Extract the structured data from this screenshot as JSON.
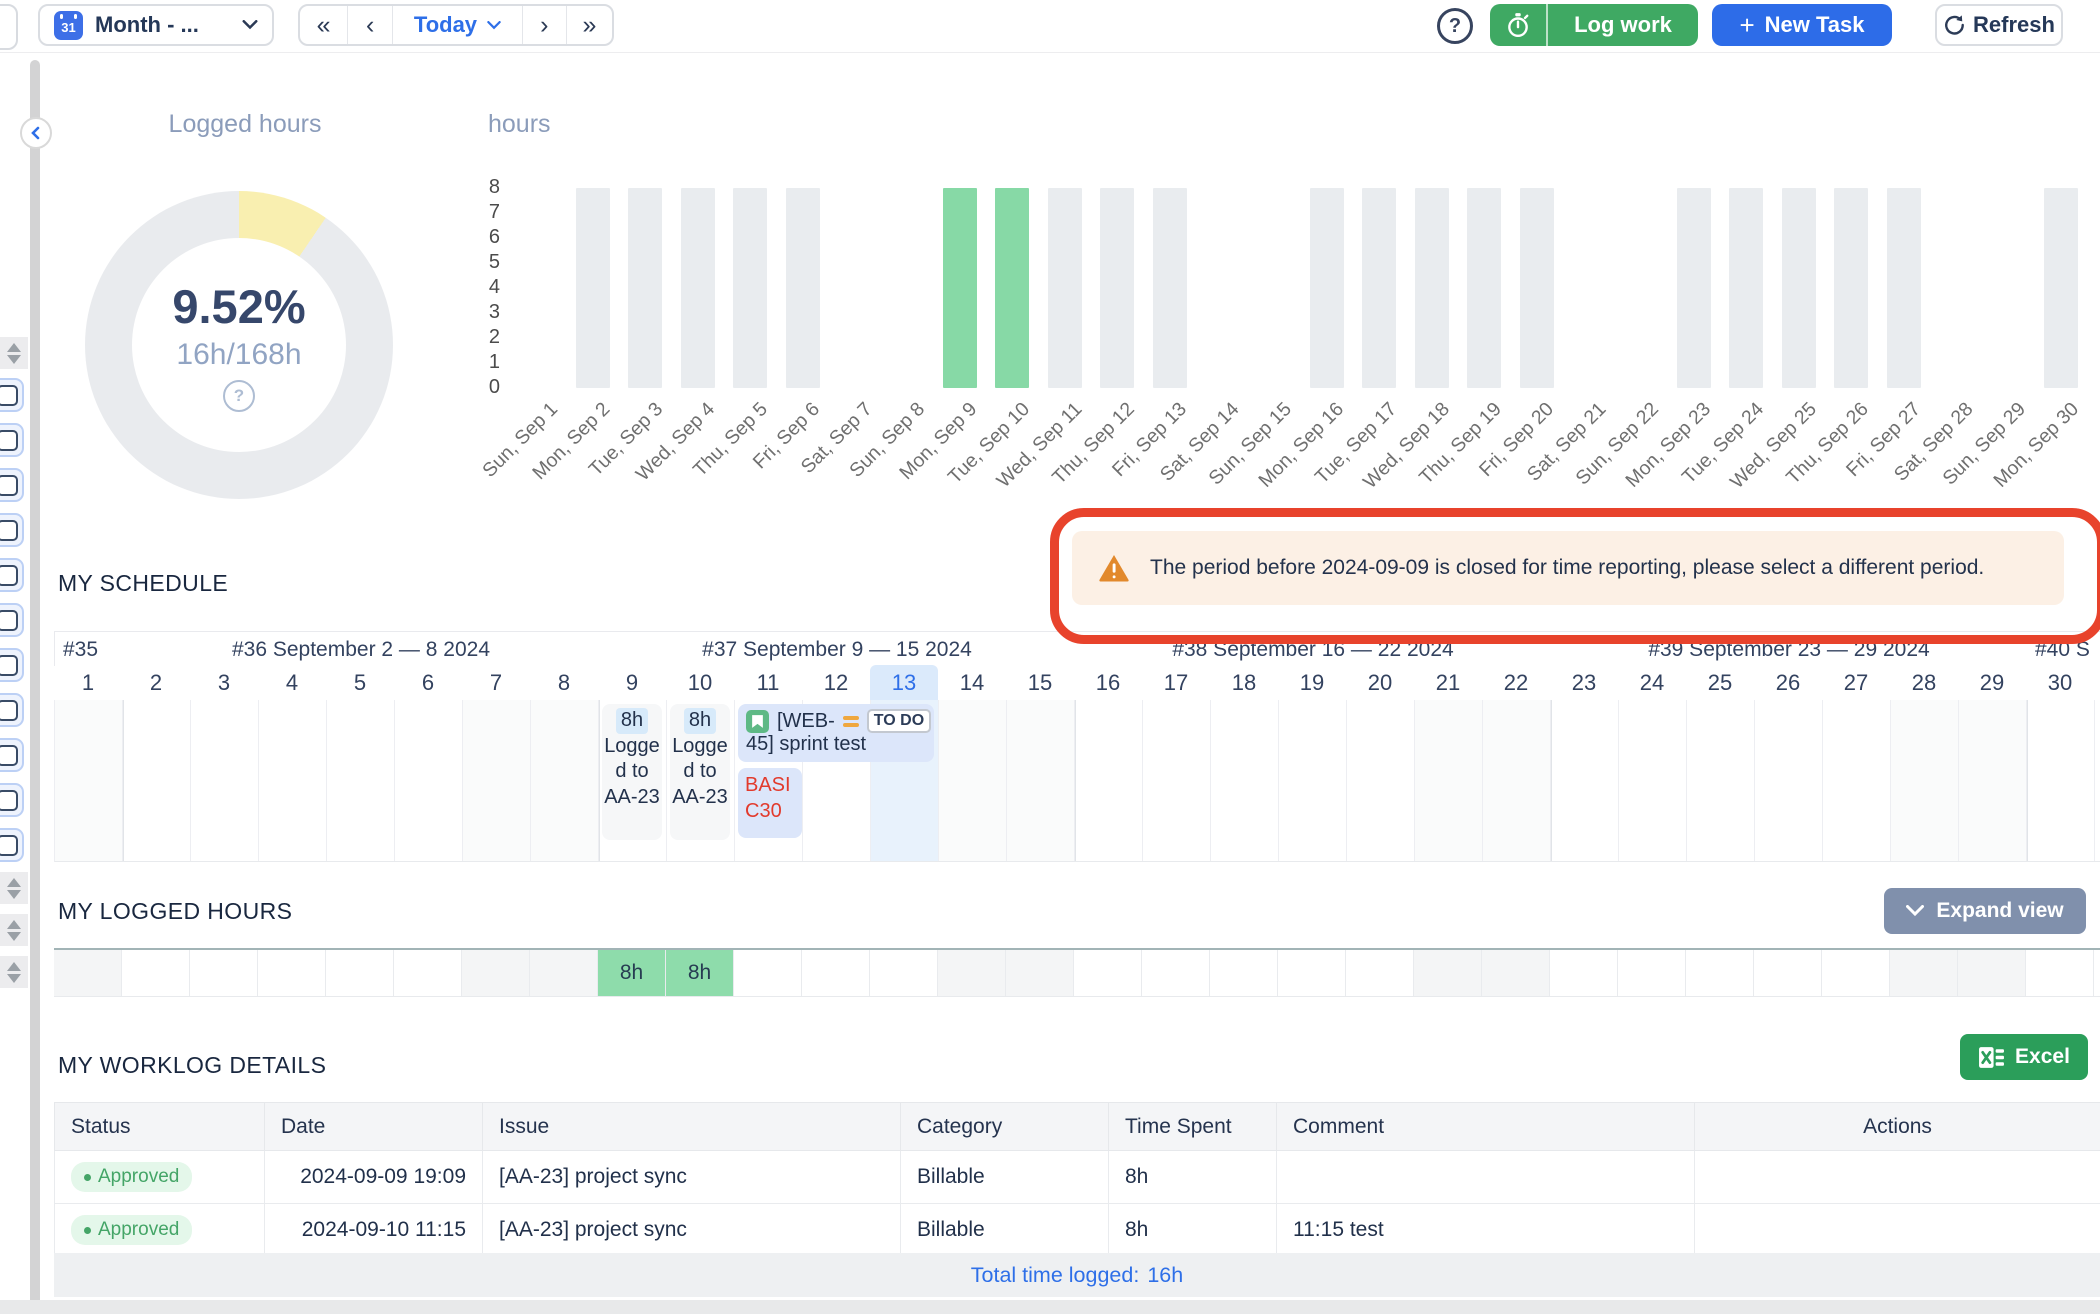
{
  "topbar": {
    "period_selector": {
      "label": "Month - ...",
      "icon": "calendar-31"
    },
    "nav": {
      "first": "«",
      "prev": "‹",
      "today": "Today",
      "next": "›",
      "last": "»"
    },
    "help_icon": "?",
    "log_work": {
      "label": "Log work",
      "icon": "stopwatch"
    },
    "new_task": {
      "label": "New Task",
      "icon": "+"
    },
    "refresh": {
      "label": "Refresh",
      "icon": "refresh-arrow"
    }
  },
  "chart_data": [
    {
      "type": "pie",
      "title": "Logged hours",
      "center_value": "9.52%",
      "center_sub": "16h/168h",
      "help_icon": "?",
      "slices": [
        {
          "label": "logged",
          "value": 9.52,
          "color": "#f9efb0"
        },
        {
          "label": "remaining",
          "value": 90.48,
          "color": "#e9ebee"
        }
      ]
    },
    {
      "type": "bar",
      "title": "hours",
      "ylim": [
        0,
        8
      ],
      "yticks": [
        0,
        1,
        2,
        3,
        4,
        5,
        6,
        7,
        8
      ],
      "categories": [
        "Sun, Sep 1",
        "Mon, Sep 2",
        "Tue, Sep 3",
        "Wed, Sep 4",
        "Thu, Sep 5",
        "Fri, Sep 6",
        "Sat, Sep 7",
        "Sun, Sep 8",
        "Mon, Sep 9",
        "Tue, Sep 10",
        "Wed, Sep 11",
        "Thu, Sep 12",
        "Fri, Sep 13",
        "Sat, Sep 14",
        "Sun, Sep 15",
        "Mon, Sep 16",
        "Tue, Sep 17",
        "Wed, Sep 18",
        "Thu, Sep 19",
        "Fri, Sep 20",
        "Sat, Sep 21",
        "Sun, Sep 22",
        "Mon, Sep 23",
        "Tue, Sep 24",
        "Wed, Sep 25",
        "Thu, Sep 26",
        "Fri, Sep 27",
        "Sat, Sep 28",
        "Sun, Sep 29",
        "Mon, Sep 30"
      ],
      "values": [
        0,
        8,
        8,
        8,
        8,
        8,
        0,
        0,
        8,
        8,
        8,
        8,
        8,
        0,
        0,
        8,
        8,
        8,
        8,
        8,
        0,
        0,
        8,
        8,
        8,
        8,
        8,
        0,
        0,
        8
      ],
      "bar_color": "#e9ecef",
      "highlight_color": "#87d9a6",
      "highlighted_categories": [
        "Mon, Sep 9",
        "Tue, Sep 10"
      ]
    }
  ],
  "warning": {
    "icon": "warning-triangle",
    "text": "The period before 2024-09-09 is closed for time reporting, please select a different period.",
    "annotation_color": "#e8432c"
  },
  "schedule": {
    "title": "MY SCHEDULE",
    "weeks": [
      {
        "label": "#35",
        "start": 1,
        "end": 1
      },
      {
        "label": "#36 September 2 — 8 2024",
        "start": 2,
        "end": 8
      },
      {
        "label": "#37 September 9 — 15 2024",
        "start": 9,
        "end": 15
      },
      {
        "label": "#38 September 16 — 22 2024",
        "start": 16,
        "end": 22
      },
      {
        "label": "#39 September 23 — 29 2024",
        "start": 23,
        "end": 29
      },
      {
        "label": "#40 S",
        "start": 30,
        "end": 30
      }
    ],
    "day_numbers": [
      1,
      2,
      3,
      4,
      5,
      6,
      7,
      8,
      9,
      10,
      11,
      12,
      13,
      14,
      15,
      16,
      17,
      18,
      19,
      20,
      21,
      22,
      23,
      24,
      25,
      26,
      27,
      28,
      29,
      30
    ],
    "today": 13,
    "weekend_days": [
      1,
      7,
      8,
      14,
      15,
      21,
      22,
      28,
      29
    ],
    "entries": [
      {
        "day": 9,
        "hours": "8h",
        "text": "Logged to AA-23"
      },
      {
        "day": 10,
        "hours": "8h",
        "text": "Logged to AA-23"
      }
    ],
    "task_card": {
      "start_day": 11,
      "span_days": 3,
      "key_line1": "[WEB-",
      "key_line2": "45] sprint test",
      "status": "TO DO",
      "type_icon": "bookmark",
      "priority_icon": "priority-medium"
    },
    "tag_card": {
      "day": 11,
      "text": "BASIC30"
    }
  },
  "logged_hours": {
    "title": "MY LOGGED HOURS",
    "expand_button": "Expand view",
    "cells": [
      {
        "day": 9,
        "value": "8h"
      },
      {
        "day": 10,
        "value": "8h"
      }
    ]
  },
  "worklog": {
    "title": "MY WORKLOG DETAILS",
    "excel_button": "Excel",
    "columns": [
      "Status",
      "Date",
      "Issue",
      "Category",
      "Time Spent",
      "Comment",
      "Actions"
    ],
    "rows": [
      {
        "status": "Approved",
        "date": "2024-09-09 19:09",
        "issue": "[AA-23] project sync",
        "category": "Billable",
        "time_spent": "8h",
        "comment": "",
        "actions": ""
      },
      {
        "status": "Approved",
        "date": "2024-09-10 11:15",
        "issue": "[AA-23] project sync",
        "category": "Billable",
        "time_spent": "8h",
        "comment": "11:15 test",
        "actions": ""
      }
    ],
    "total_label": "Total time logged:",
    "total_value": "16h"
  }
}
